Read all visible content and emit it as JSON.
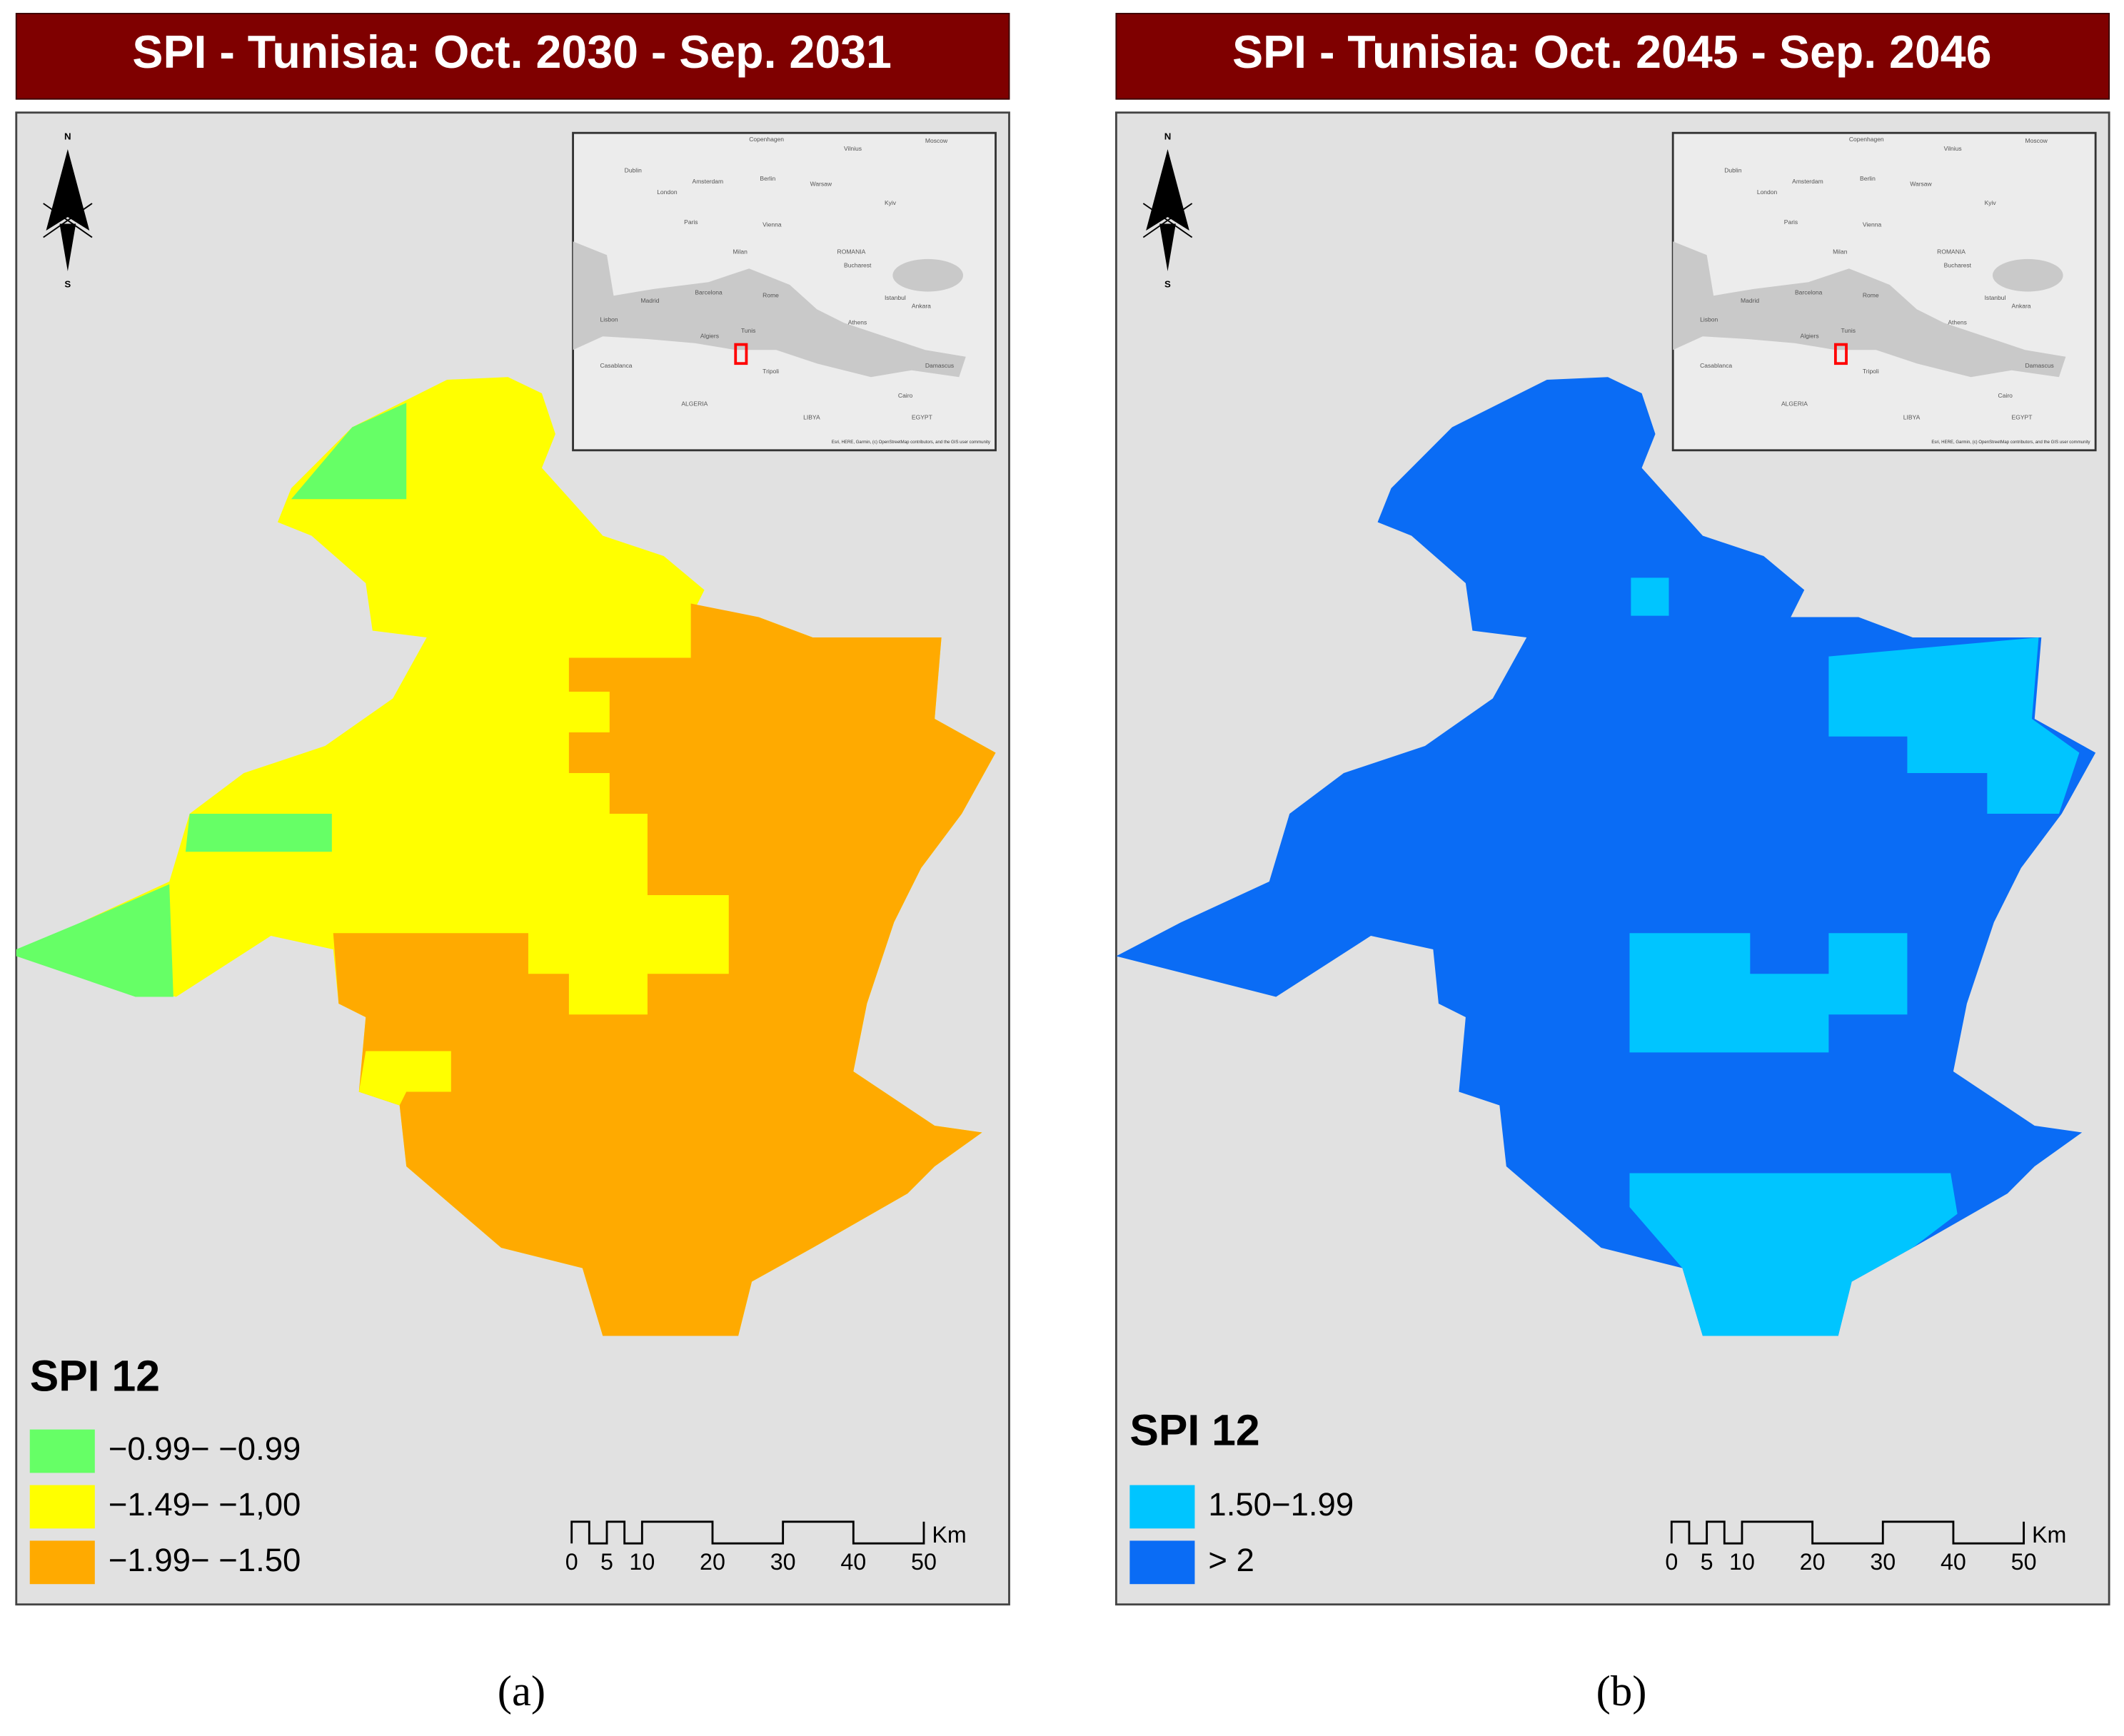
{
  "panels": [
    {
      "title": "SPI - Tunisia: Oct. 2030 - Sep. 2031",
      "legend": {
        "title": "SPI 12",
        "items": [
          {
            "label": "−0.99− −0.99",
            "color": "#66ff66"
          },
          {
            "label": "−1.49− −1,00",
            "color": "#ffff00"
          },
          {
            "label": "−1.99− −1.50",
            "color": "#ffaa00"
          }
        ]
      },
      "caption": "(a)"
    },
    {
      "title": "SPI - Tunisia: Oct. 2045 - Sep. 2046",
      "legend": {
        "title": "SPI 12",
        "items": [
          {
            "label": "1.50−1.99",
            "color": "#00c5ff"
          },
          {
            "label": "> 2",
            "color": "#0a6cf5"
          }
        ]
      },
      "caption": "(b)"
    }
  ],
  "scale_bar": {
    "labels": [
      "0",
      "5",
      "10",
      "20",
      "30",
      "40",
      "50"
    ],
    "unit": "Km"
  },
  "compass": {
    "north": "N",
    "south": "S"
  },
  "inset_map": {
    "labels": [
      "Copenhagen",
      "Vilnius",
      "Moscow",
      "Dublin",
      "Amsterdam",
      "Berlin",
      "Warsaw",
      "London",
      "Kyiv",
      "Paris",
      "Vienna",
      "Milan",
      "ROMANIA",
      "Bucharest",
      "Barcelona",
      "Rome",
      "Madrid",
      "Lisbon",
      "Istanbul",
      "Ankara",
      "Athens",
      "Algiers",
      "Tunis",
      "Casablanca",
      "Tripoli",
      "Cairo",
      "Damascus",
      "LIBYA",
      "ALGERIA",
      "EGYPT"
    ],
    "attribution": "Esri, HERE, Garmin, (c) OpenStreetMap contributors, and the GIS user community"
  }
}
